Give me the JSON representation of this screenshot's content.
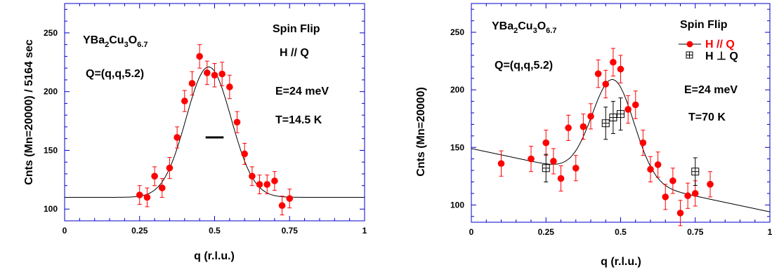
{
  "colors": {
    "marker": "#ff0000",
    "errorbar": "#ff0000",
    "axis": "#0000cc",
    "fit": "#000000",
    "text": "#000000",
    "legend_red": "#ff0000"
  },
  "chart_data": [
    {
      "type": "scatter",
      "xlabel": "q  (r.l.u.)",
      "ylabel": "Cnts  (Mn=20000) / 5164 sec",
      "xlim": [
        0,
        1
      ],
      "ylim": [
        90,
        275
      ],
      "x_ticks": [
        "0",
        "0.25",
        "0.5",
        "0.75",
        "1"
      ],
      "y_ticks": [
        "100",
        "150",
        "200",
        "250"
      ],
      "grid": false,
      "annotations": {
        "compound": {
          "base": "YBa",
          "sub1": "2",
          "mid1": "Cu",
          "sub2": "3",
          "mid2": "O",
          "sub3": "6.7"
        },
        "q_vector": "Q=(q,q,5.2)",
        "mode": "Spin Flip",
        "field": "H // Q",
        "energy": "E=24 meV",
        "temperature": "T=14.5 K"
      },
      "resolution_bar": {
        "x": [
          0.47,
          0.53
        ],
        "y": 161
      },
      "series": [
        {
          "marker": "filled-circle",
          "x": [
            0.25,
            0.275,
            0.3,
            0.325,
            0.35,
            0.375,
            0.4,
            0.425,
            0.45,
            0.475,
            0.5,
            0.525,
            0.55,
            0.575,
            0.6,
            0.625,
            0.65,
            0.675,
            0.7,
            0.725,
            0.75
          ],
          "y": [
            112,
            110,
            128,
            118,
            135,
            161,
            192,
            207,
            230,
            216,
            214,
            215,
            204,
            174,
            147,
            128,
            121,
            121,
            124,
            103,
            109
          ],
          "err": [
            8,
            8,
            8,
            8,
            9,
            9,
            9,
            10,
            10,
            10,
            10,
            10,
            10,
            9,
            9,
            8,
            8,
            8,
            8,
            8,
            8
          ]
        }
      ],
      "fit": {
        "type": "gaussian",
        "baseline": 110,
        "amplitude": 111,
        "center": 0.48,
        "sigma": 0.075
      }
    },
    {
      "type": "scatter",
      "xlabel": "q  (r.l.u.)",
      "ylabel": "Cnts  (Mn=20000)",
      "xlim": [
        0,
        1
      ],
      "ylim": [
        85,
        275
      ],
      "x_ticks": [
        "0",
        "0.25",
        "0.5",
        "0.75",
        "1"
      ],
      "y_ticks": [
        "100",
        "150",
        "200",
        "250"
      ],
      "grid": false,
      "annotations": {
        "compound": {
          "base": "YBa",
          "sub1": "2",
          "mid1": "Cu",
          "sub2": "3",
          "mid2": "O",
          "sub3": "6.7"
        },
        "q_vector": "Q=(q,q,5.2)",
        "mode": "Spin Flip",
        "energy": "E=24 meV",
        "temperature": "T=70 K"
      },
      "legend": {
        "placement": "top-right",
        "entries": [
          "H // Q",
          "H ⊥ Q"
        ]
      },
      "series": [
        {
          "name": "H // Q",
          "marker": "filled-circle",
          "x": [
            0.1,
            0.2,
            0.25,
            0.275,
            0.3,
            0.325,
            0.35,
            0.375,
            0.4,
            0.425,
            0.45,
            0.475,
            0.5,
            0.525,
            0.55,
            0.575,
            0.6,
            0.625,
            0.65,
            0.675,
            0.7,
            0.725,
            0.75,
            0.8
          ],
          "y": [
            136,
            140,
            154,
            138,
            123,
            167,
            132,
            168,
            177,
            214,
            205,
            224,
            218,
            183,
            187,
            154,
            131,
            135,
            107,
            121,
            93,
            108,
            110,
            118
          ],
          "err": [
            11,
            11,
            11,
            11,
            11,
            11,
            11,
            11,
            11,
            12,
            12,
            12,
            12,
            12,
            12,
            11,
            11,
            11,
            11,
            11,
            11,
            11,
            11,
            11
          ]
        },
        {
          "name": "H ⊥ Q",
          "marker": "open-square-cross",
          "x": [
            0.25,
            0.45,
            0.475,
            0.5,
            0.75
          ],
          "y": [
            132,
            171,
            176,
            179,
            129
          ],
          "err": [
            12,
            14,
            14,
            14,
            12
          ]
        }
      ],
      "fit": {
        "type": "gaussian-on-sloped-background",
        "baseline_at_0": 149,
        "slope": -55,
        "amplitude": 86,
        "center": 0.475,
        "sigma": 0.07
      }
    }
  ]
}
